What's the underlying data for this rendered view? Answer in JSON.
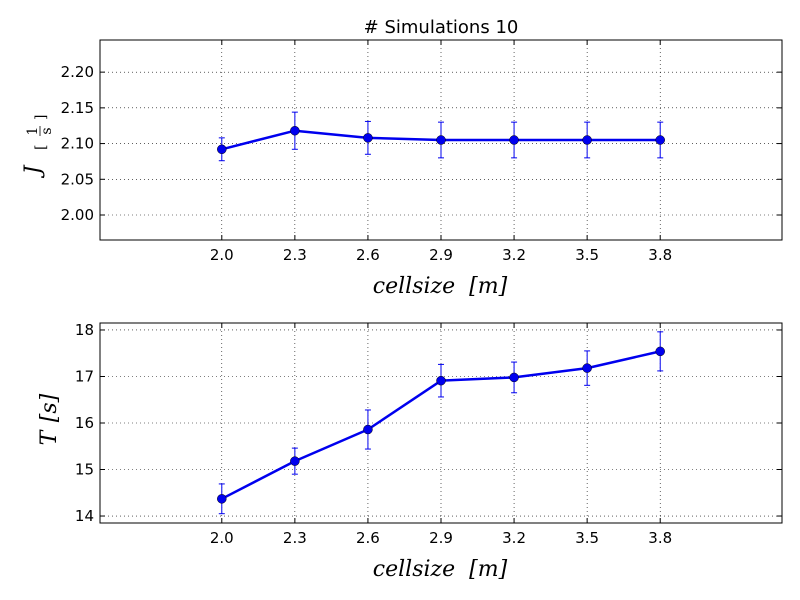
{
  "chart_data": [
    {
      "type": "line",
      "title": "# Simulations 10",
      "xlabel": "cellsize  [m]",
      "ylabel": "J  [1/s]",
      "ylabel_symbol": "J",
      "ylabel_unit_num": "1",
      "ylabel_unit_den": "s",
      "xlabel_var": "cellsize",
      "xlabel_unit": "[m]",
      "x": [
        2.0,
        2.3,
        2.6,
        2.9,
        3.2,
        3.5,
        3.8
      ],
      "x_tick_labels": [
        "2.0",
        "2.3",
        "2.6",
        "2.9",
        "3.2",
        "3.5",
        "3.8"
      ],
      "xlim": [
        1.5,
        4.3
      ],
      "series": [
        {
          "values": [
            2.092,
            2.118,
            2.108,
            2.105,
            2.105,
            2.105,
            2.105
          ],
          "errors": [
            0.016,
            0.026,
            0.023,
            0.025,
            0.025,
            0.025,
            0.025
          ],
          "color": "#0000ee"
        }
      ],
      "ylim": [
        1.965,
        2.245
      ],
      "y_ticks": [
        2.0,
        2.05,
        2.1,
        2.15,
        2.2
      ],
      "y_tick_labels": [
        "2.00",
        "2.05",
        "2.10",
        "2.15",
        "2.20"
      ],
      "grid": true
    },
    {
      "type": "line",
      "title": "",
      "xlabel": "cellsize  [m]",
      "ylabel": "T  [s]",
      "ylabel_symbol": "T",
      "ylabel_unit": "[s]",
      "xlabel_var": "cellsize",
      "xlabel_unit": "[m]",
      "x": [
        2.0,
        2.3,
        2.6,
        2.9,
        3.2,
        3.5,
        3.8
      ],
      "x_tick_labels": [
        "2.0",
        "2.3",
        "2.6",
        "2.9",
        "3.2",
        "3.5",
        "3.8"
      ],
      "xlim": [
        1.5,
        4.3
      ],
      "series": [
        {
          "values": [
            14.37,
            15.18,
            15.86,
            16.91,
            16.98,
            17.18,
            17.54
          ],
          "errors": [
            0.32,
            0.28,
            0.42,
            0.35,
            0.33,
            0.37,
            0.42
          ],
          "color": "#0000ee"
        }
      ],
      "ylim": [
        13.85,
        18.15
      ],
      "y_ticks": [
        14,
        15,
        16,
        17,
        18
      ],
      "y_tick_labels": [
        "14",
        "15",
        "16",
        "17",
        "18"
      ],
      "grid": true
    }
  ]
}
